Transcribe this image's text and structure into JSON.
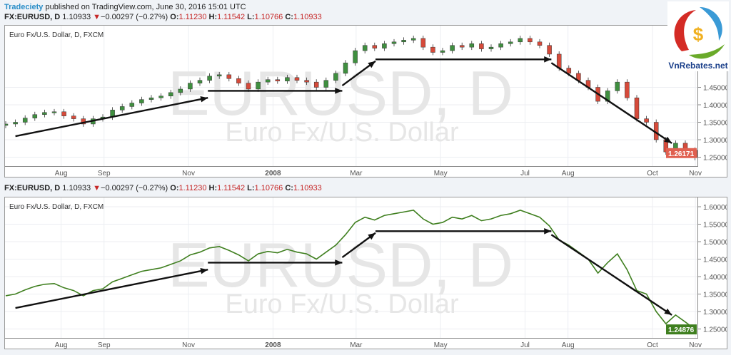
{
  "header": {
    "author": "Tradeciety",
    "published": "published on TradingView.com, June 30, 2016 15:01 UTC"
  },
  "quote": {
    "symbol": "FX:EURUSD, D",
    "last": "1.10933",
    "change": "−0.00297 (−0.27%)",
    "o_label": "O:",
    "o": "1.11230",
    "h_label": "H:",
    "h": "1.11542",
    "l_label": "L:",
    "l": "1.10766",
    "c_label": "C:",
    "c": "1.10933",
    "down_icon": "triangle-down"
  },
  "logo": {
    "text": "VnRebates.net"
  },
  "colors": {
    "up": "#3f8f3f",
    "down": "#d64a3a",
    "line": "#3f7f1f",
    "last_top": "#e06050",
    "last_bottom": "#3f7f1f"
  },
  "charts": [
    {
      "series_label": "Euro Fx/U.S. Dollar, D, FXCM",
      "watermark": "EURUSD, D",
      "watermark_sub": "Euro Fx/U.S. Dollar",
      "last_label": "1.26171",
      "style": "candles"
    },
    {
      "series_label": "Euro Fx/U.S. Dollar, D, FXCM",
      "watermark": "EURUSD, D",
      "watermark_sub": "Euro Fx/U.S. Dollar",
      "last_label": "1.24876",
      "style": "line"
    }
  ],
  "chart_data": {
    "type": "line",
    "x_start": "2007-06-22",
    "x_step": "1 week",
    "ylim": [
      1.22,
      1.62
    ],
    "y_ticks_top": [
      "1.45000",
      "1.40000",
      "1.35000",
      "1.30000",
      "1.25000"
    ],
    "y_ticks_bottom": [
      "1.60000",
      "1.55000",
      "1.50000",
      "1.45000",
      "1.40000",
      "1.35000",
      "1.30000",
      "1.25000"
    ],
    "x_ticks": [
      [
        "Aug",
        "2007-08-01"
      ],
      [
        "Sep",
        "2007-09-01"
      ],
      [
        "Nov",
        "2007-11-01"
      ],
      [
        "2008",
        "2008-01-01"
      ],
      [
        "Mar",
        "2008-03-01"
      ],
      [
        "May",
        "2008-05-01"
      ],
      [
        "Jul",
        "2008-07-01"
      ],
      [
        "Aug",
        "2008-08-01"
      ],
      [
        "Oct",
        "2008-10-01"
      ],
      [
        "Nov",
        "2008-11-01"
      ]
    ],
    "values": [
      1.345,
      1.35,
      1.362,
      1.372,
      1.378,
      1.38,
      1.368,
      1.36,
      1.345,
      1.36,
      1.365,
      1.385,
      1.395,
      1.405,
      1.415,
      1.42,
      1.425,
      1.435,
      1.445,
      1.462,
      1.47,
      1.482,
      1.486,
      1.475,
      1.462,
      1.445,
      1.465,
      1.472,
      1.468,
      1.478,
      1.47,
      1.465,
      1.45,
      1.47,
      1.49,
      1.52,
      1.555,
      1.57,
      1.562,
      1.575,
      1.58,
      1.585,
      1.59,
      1.565,
      1.55,
      1.555,
      1.57,
      1.565,
      1.575,
      1.56,
      1.565,
      1.575,
      1.58,
      1.59,
      1.58,
      1.57,
      1.545,
      1.505,
      1.49,
      1.47,
      1.45,
      1.41,
      1.44,
      1.465,
      1.42,
      1.36,
      1.35,
      1.3,
      1.265,
      1.29,
      1.27,
      1.249
    ],
    "trend_arrows": [
      [
        "2007-06-29",
        1.31,
        "2007-11-15",
        1.42
      ],
      [
        "2007-11-15",
        1.44,
        "2008-02-20",
        1.44
      ],
      [
        "2008-02-20",
        1.455,
        "2008-03-15",
        1.525
      ],
      [
        "2008-03-15",
        1.53,
        "2008-07-20",
        1.53
      ],
      [
        "2008-07-20",
        1.52,
        "2008-10-15",
        1.29
      ]
    ]
  }
}
